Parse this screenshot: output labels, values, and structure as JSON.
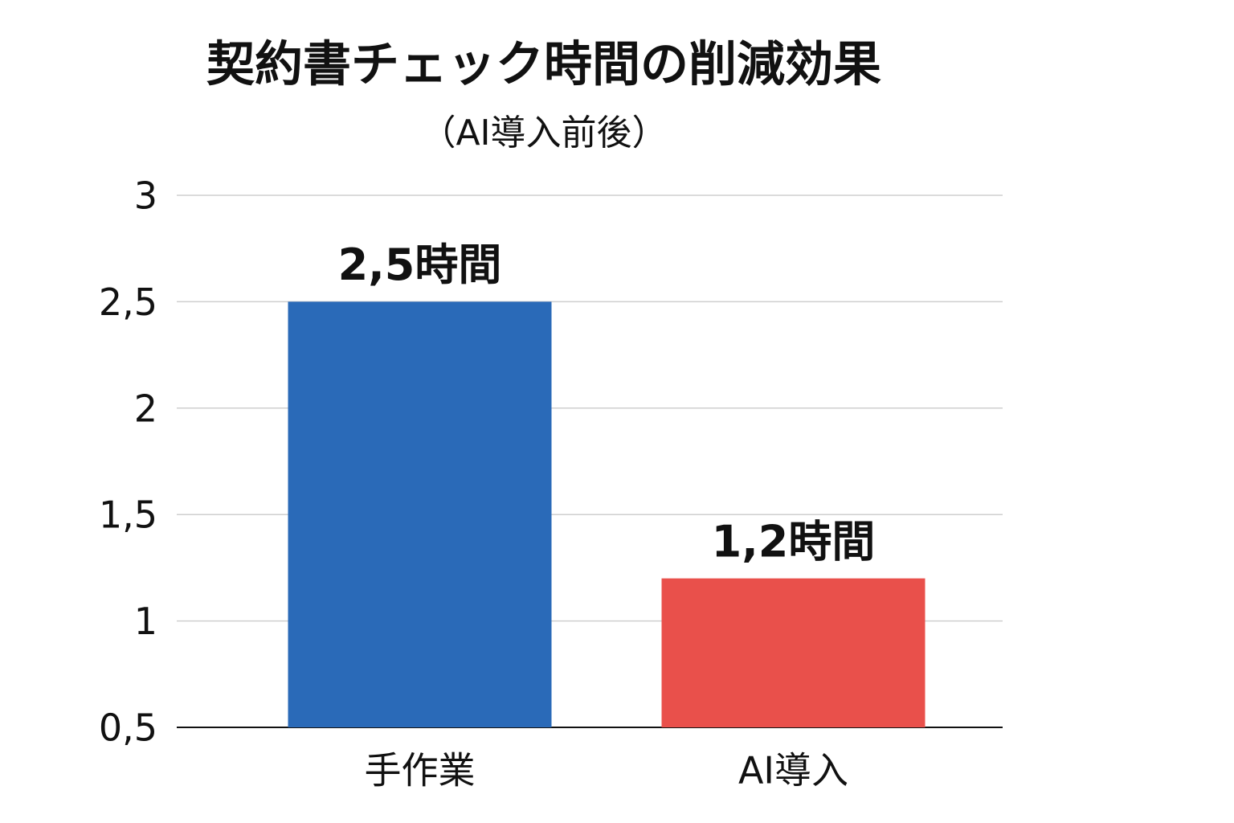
{
  "chart_data": {
    "type": "bar",
    "title": "契約書チェック時間の削減効果",
    "subtitle": "（AI導入前後）",
    "categories": [
      "手作業",
      "AI導入"
    ],
    "series": [
      {
        "values": [
          2.5,
          1.2
        ],
        "value_labels": [
          "2,5時間",
          "1,2時間"
        ],
        "colors": [
          "#2a6ab8",
          "#e9504b"
        ]
      }
    ],
    "ylim": [
      0.5,
      3
    ],
    "yticks": [
      {
        "value": 0.5,
        "label": "0,5"
      },
      1,
      {
        "value": 1.5,
        "label": "1,5"
      },
      2,
      {
        "value": 2.5,
        "label": "2,5"
      },
      3
    ],
    "grid": true
  }
}
